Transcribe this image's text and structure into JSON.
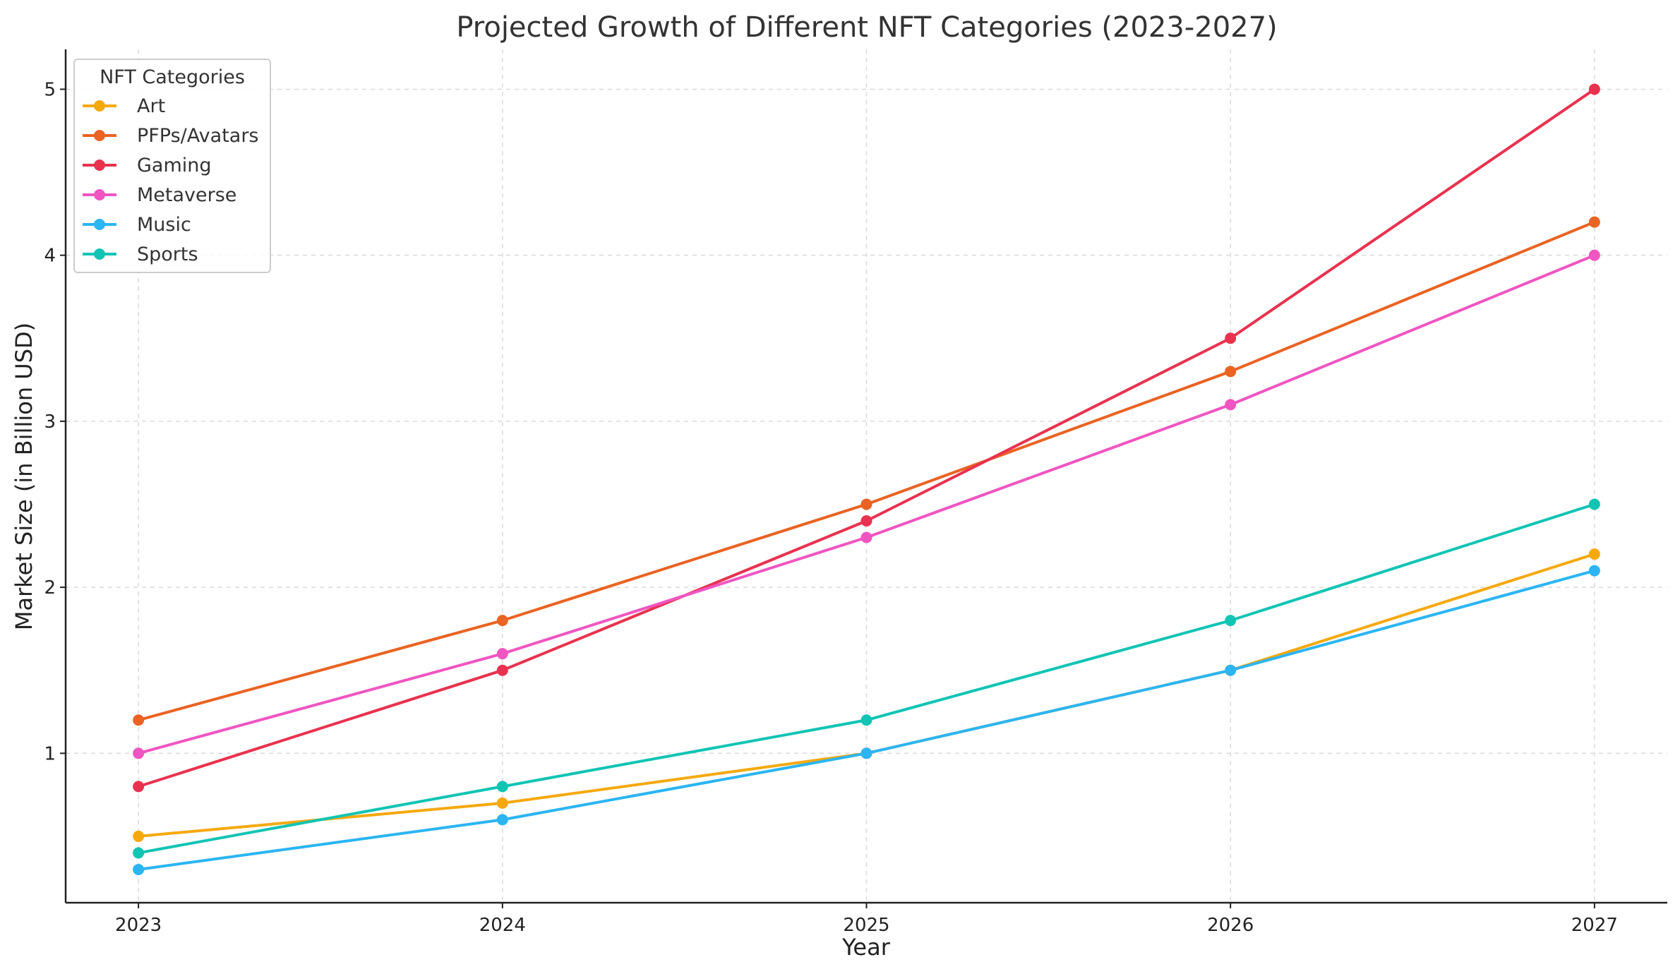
{
  "chart_data": {
    "type": "line",
    "title": "Projected Growth of Different NFT Categories (2023-2027)",
    "xlabel": "Year",
    "ylabel": "Market Size (in Billion USD)",
    "x": [
      "2023",
      "2024",
      "2025",
      "2026",
      "2027"
    ],
    "xlim": [
      2022.8,
      2027.2
    ],
    "ylim": [
      0.1,
      5.24
    ],
    "yticks": [
      1,
      2,
      3,
      4,
      5
    ],
    "grid": true,
    "legend": {
      "title": "NFT Categories",
      "placement": "top-left"
    },
    "series": [
      {
        "name": "Art",
        "color": "#f5a90f",
        "values": [
          0.5,
          0.7,
          1.0,
          1.5,
          2.2
        ]
      },
      {
        "name": "PFPs/Avatars",
        "color": "#ea6322",
        "values": [
          1.2,
          1.8,
          2.5,
          3.3,
          4.2
        ]
      },
      {
        "name": "Gaming",
        "color": "#e8324f",
        "values": [
          0.8,
          1.5,
          2.4,
          3.5,
          5.0
        ]
      },
      {
        "name": "Metaverse",
        "color": "#f055c2",
        "values": [
          1.0,
          1.6,
          2.3,
          3.1,
          4.0
        ]
      },
      {
        "name": "Music",
        "color": "#2bb5f2",
        "values": [
          0.3,
          0.6,
          1.0,
          1.5,
          2.1
        ]
      },
      {
        "name": "Sports",
        "color": "#12c4b4",
        "values": [
          0.4,
          0.8,
          1.2,
          1.8,
          2.5
        ]
      }
    ]
  }
}
